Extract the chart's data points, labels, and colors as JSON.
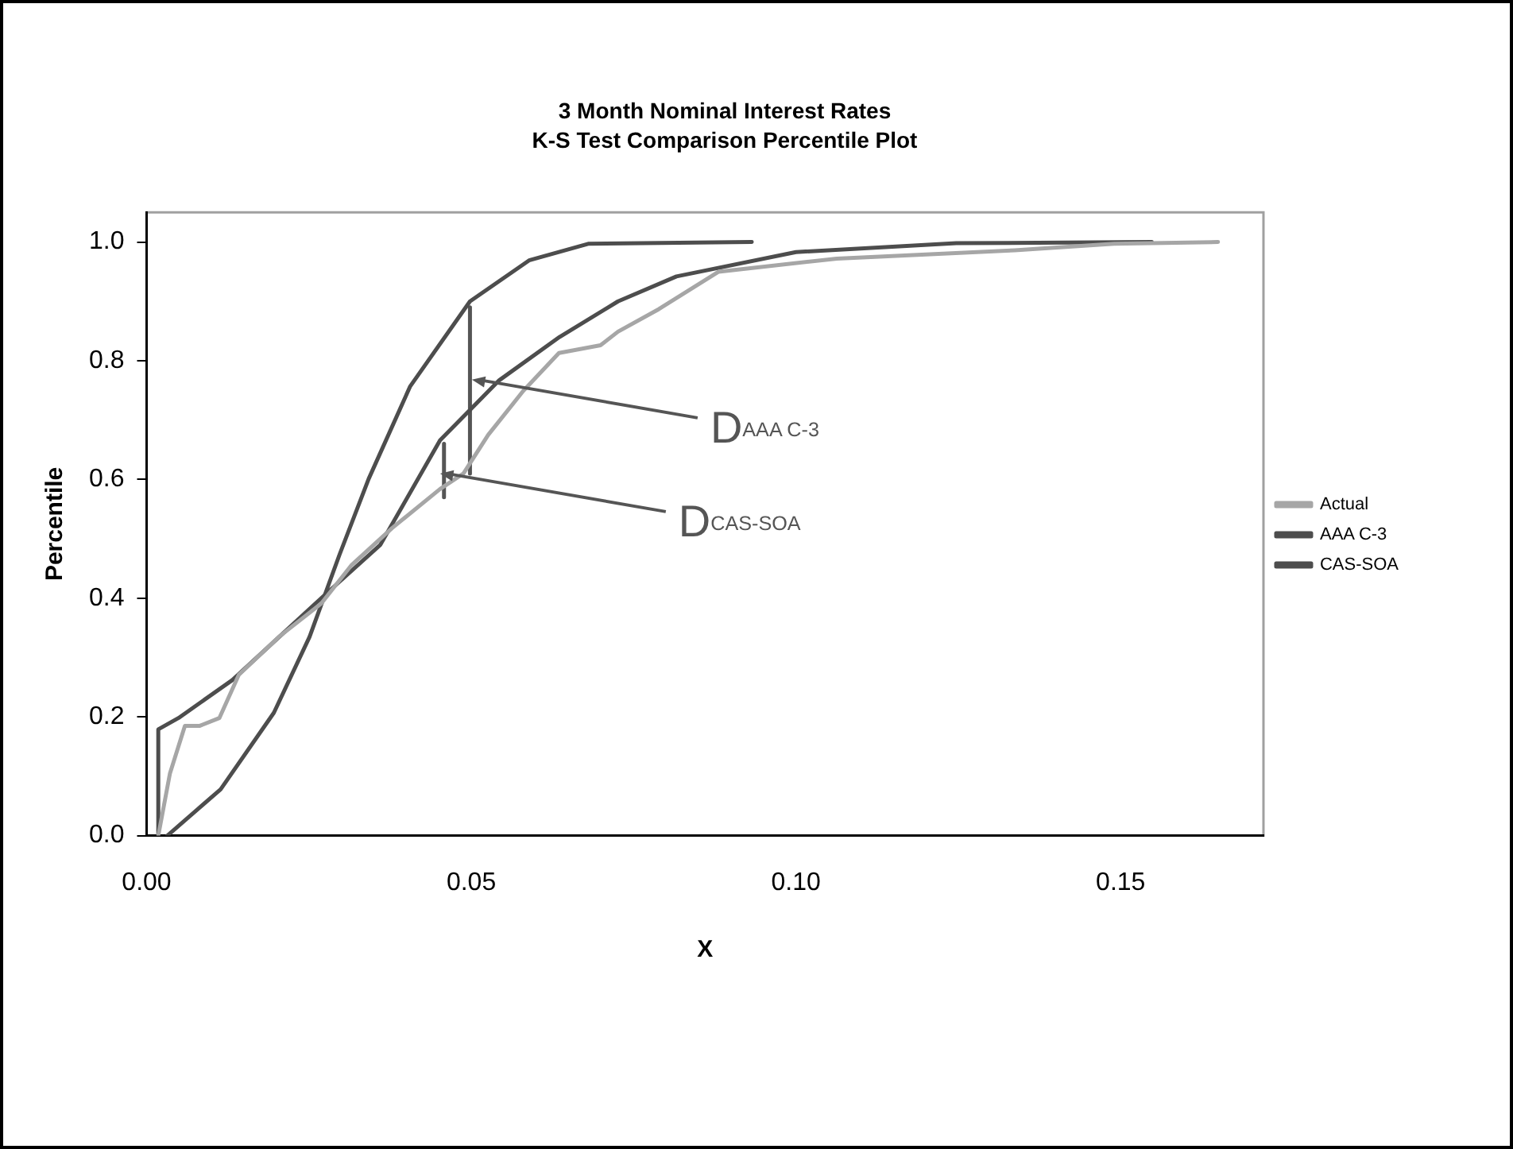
{
  "chart_data": {
    "type": "line",
    "title": "3 Month Nominal Interest Rates",
    "subtitle": "K-S Test Comparison Percentile Plot",
    "xlabel": "X",
    "ylabel": "Percentile",
    "xlim": [
      0,
      0.172
    ],
    "xticks": [
      {
        "value": 0,
        "label": "0.00"
      },
      {
        "value": 0.05,
        "label": "0.05"
      },
      {
        "value": 0.1,
        "label": "0.10"
      },
      {
        "value": 0.15,
        "label": "0.15"
      }
    ],
    "ylim": [
      0,
      1.05
    ],
    "yticks": [
      {
        "value": 0,
        "label": "0.0"
      },
      {
        "value": 0.2,
        "label": "0.2"
      },
      {
        "value": 0.4,
        "label": "0.4"
      },
      {
        "value": 0.6,
        "label": "0.6"
      },
      {
        "value": 0.8,
        "label": "0.8"
      },
      {
        "value": 1,
        "label": "1.0"
      }
    ],
    "grid": false,
    "legend": "right",
    "marker": "none",
    "line_style": "solid",
    "series": [
      {
        "name": "Actual",
        "color": "#a6a6a6",
        "x": [
          0.0018,
          0.0036,
          0.0059,
          0.0082,
          0.0112,
          0.0142,
          0.0205,
          0.0269,
          0.0315,
          0.0378,
          0.0452,
          0.0488,
          0.0526,
          0.058,
          0.0635,
          0.0699,
          0.0726,
          0.0789,
          0.0881,
          0.1063,
          0.1337,
          0.149,
          0.165
        ],
        "values": [
          0,
          0.105,
          0.185,
          0.185,
          0.198,
          0.271,
          0.336,
          0.391,
          0.455,
          0.518,
          0.584,
          0.61,
          0.675,
          0.749,
          0.813,
          0.826,
          0.849,
          0.887,
          0.95,
          0.972,
          0.986,
          0.997,
          1.0
        ]
      },
      {
        "name": "AAA C-3",
        "color": "#4d4d4d",
        "x": [
          0.0018,
          0.0018,
          0.0049,
          0.0132,
          0.0269,
          0.036,
          0.0452,
          0.0543,
          0.0636,
          0.0726,
          0.0816,
          0.1,
          0.1247,
          0.1548
        ],
        "values": [
          0,
          0.179,
          0.198,
          0.262,
          0.4,
          0.49,
          0.666,
          0.767,
          0.84,
          0.9,
          0.942,
          0.983,
          0.998,
          1.0
        ]
      },
      {
        "name": "CAS-SOA",
        "color": "#4d4d4d",
        "x": [
          0.0032,
          0.0114,
          0.0196,
          0.0251,
          0.0297,
          0.0342,
          0.0406,
          0.0498,
          0.0589,
          0.068,
          0.0932
        ],
        "values": [
          0,
          0.078,
          0.207,
          0.335,
          0.473,
          0.601,
          0.757,
          0.9,
          0.969,
          0.997,
          1.0
        ]
      },
      {
        "color": "#555555",
        "x": [
          0.0498,
          0.0498
        ],
        "values": [
          0.61,
          0.89
        ]
      },
      {
        "color": "#555555",
        "x": [
          0.0458,
          0.0458
        ],
        "values": [
          0.57,
          0.66
        ]
      }
    ],
    "annotations": [
      {
        "text": "D$_{AAA C-3}$",
        "x": 0.0501,
        "y": 0.768
      },
      {
        "text": "D$_{CAS-SOA}$",
        "x": 0.0452,
        "y": 0.61
      }
    ]
  }
}
